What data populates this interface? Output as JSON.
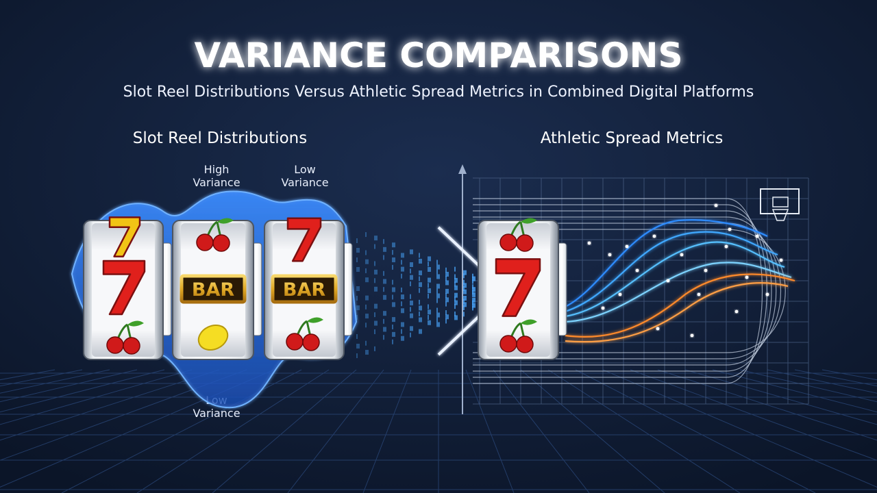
{
  "header": {
    "title": "VARIANCE COMPARISONS",
    "subtitle": "Slot Reel Distributions Versus Athletic Spread Metrics in Combined Digital Platforms"
  },
  "left_panel": {
    "heading": "Slot Reel Distributions",
    "labels": [
      {
        "lines": [
          "High",
          "Variance"
        ]
      },
      {
        "lines": [
          "Low",
          "Variance"
        ]
      },
      {
        "lines": [
          "Low",
          "Variance"
        ]
      }
    ],
    "bar_labels": [
      "BAR",
      "BAR"
    ]
  },
  "right_panel": {
    "heading": "Athletic Spread Metrics"
  }
}
